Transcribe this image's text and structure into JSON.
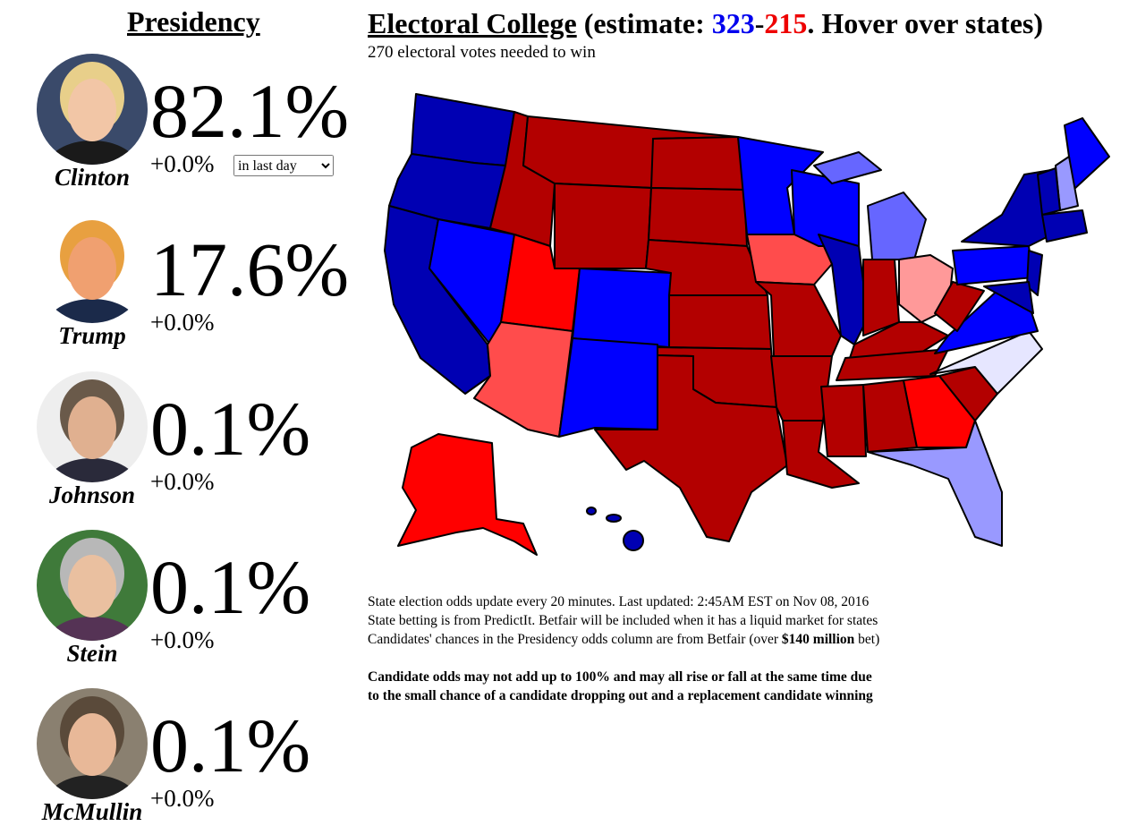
{
  "header": {
    "presidency_title": "Presidency",
    "electoral_title": "Electoral College",
    "estimate_prefix": "(estimate: ",
    "dem_votes": 323,
    "separator": "-",
    "rep_votes": 215,
    "estimate_suffix": ". Hover over states)",
    "subtitle": "270 electoral votes needed to win"
  },
  "candidates": [
    {
      "name": "Clinton",
      "odds": "82.1%",
      "change": "+0.0%"
    },
    {
      "name": "Trump",
      "odds": "17.6%",
      "change": "+0.0%"
    },
    {
      "name": "Johnson",
      "odds": "0.1%",
      "change": "+0.0%"
    },
    {
      "name": "Stein",
      "odds": "0.1%",
      "change": "+0.0%"
    },
    {
      "name": "McMullin",
      "odds": "0.1%",
      "change": "+0.0%"
    }
  ],
  "period_select": "in last day",
  "notes": {
    "line1": "State election odds update every 20 minutes. Last updated: 2:45AM EST on Nov 08, 2016",
    "line2": "State betting is from PredictIt. Betfair will be included when it has a liquid market for states",
    "line3_prefix": "Candidates' chances in the Presidency odds column are from Betfair (over ",
    "line3_bold": "$140 million",
    "line3_suffix": " bet)",
    "warning_1": "Candidate odds may not add up to 100% and may all rise or fall at the same time due",
    "warning_2": "to the small chance of a candidate dropping out and a replacement candidate winning"
  }
}
